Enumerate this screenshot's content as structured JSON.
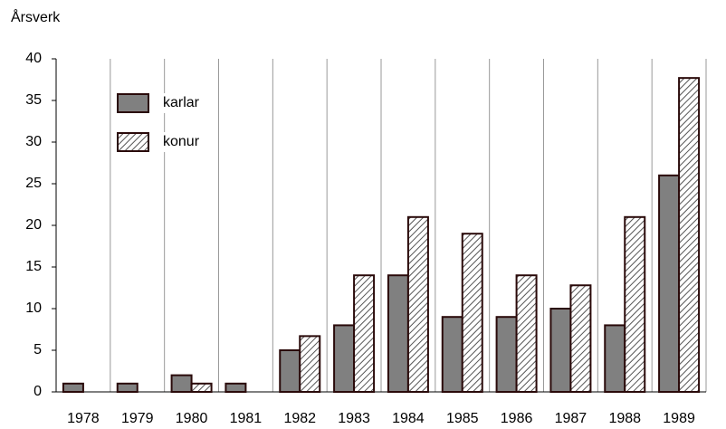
{
  "chart_data": {
    "type": "bar",
    "y_label": "Årsverk",
    "categories": [
      "1978",
      "1979",
      "1980",
      "1981",
      "1982",
      "1983",
      "1984",
      "1985",
      "1986",
      "1987",
      "1988",
      "1989"
    ],
    "series": [
      {
        "name": "karlar",
        "color": "#808080",
        "values": [
          1,
          1,
          2,
          1,
          5,
          8,
          14,
          9,
          9,
          10,
          8,
          26
        ]
      },
      {
        "name": "konur",
        "color": "#ffffff",
        "pattern": "hatch",
        "values": [
          0,
          0,
          1,
          0,
          6.7,
          14,
          21,
          19,
          14,
          12.8,
          21,
          37.7
        ]
      }
    ],
    "ylim": [
      0,
      40
    ],
    "yticks": [
      0,
      5,
      10,
      15,
      20,
      25,
      30,
      35,
      40
    ],
    "grid": "x",
    "legend": "upper left"
  }
}
